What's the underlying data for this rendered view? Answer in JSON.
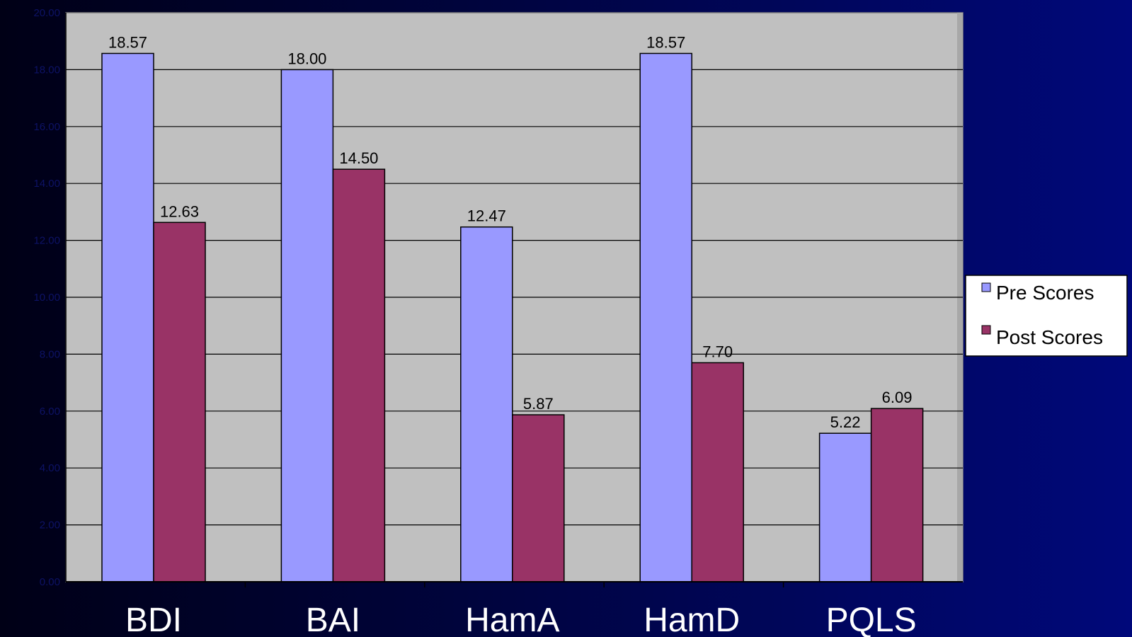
{
  "chart_data": {
    "type": "bar",
    "title": "",
    "xlabel": "",
    "ylabel": "",
    "categories": [
      "BDI",
      "BAI",
      "HamA",
      "HamD",
      "PQLS"
    ],
    "series": [
      {
        "name": "Pre Scores",
        "values": [
          18.57,
          18.0,
          12.47,
          18.57,
          5.22
        ],
        "labels": [
          "18.57",
          "18.00",
          "12.47",
          "18.57",
          "5.22"
        ]
      },
      {
        "name": "Post Scores",
        "values": [
          12.63,
          14.5,
          5.87,
          7.7,
          6.09
        ],
        "labels": [
          "12.63",
          "14.50",
          "5.87",
          "7.70",
          "6.09"
        ]
      }
    ],
    "ylim": [
      0,
      20
    ],
    "yticks": [
      0,
      2,
      4,
      6,
      8,
      10,
      12,
      14,
      16,
      18,
      20
    ],
    "ytick_labels": [
      "0.00",
      "2.00",
      "4.00",
      "6.00",
      "8.00",
      "10.00",
      "12.00",
      "14.00",
      "16.00",
      "18.00",
      "20.00"
    ],
    "grid": true,
    "legend": "right",
    "colors": {
      "pre": "#9999ff",
      "post": "#993366",
      "plot_background": "#c0c0c0",
      "page_background": "#000440"
    }
  }
}
